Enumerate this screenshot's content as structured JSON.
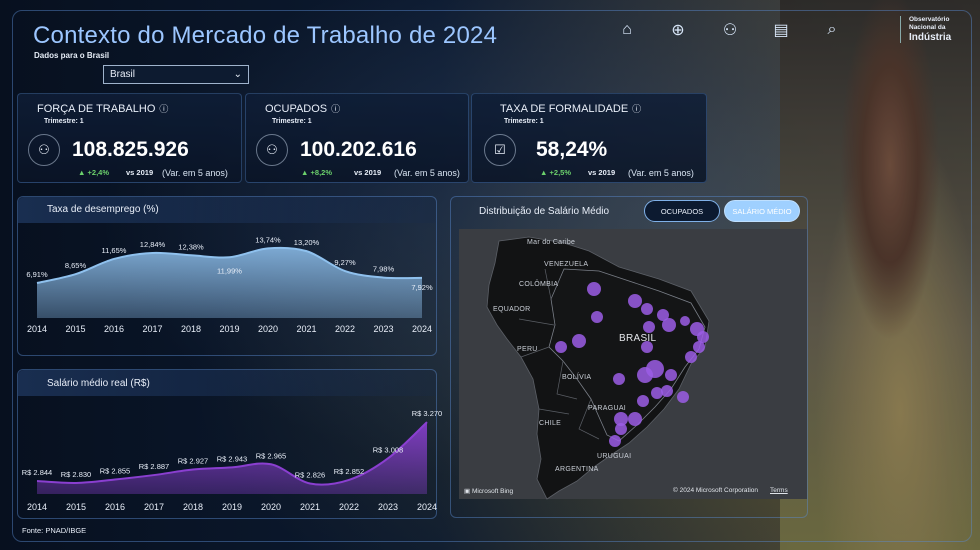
{
  "header": {
    "title": "Contexto do Mercado de Trabalho de 2024",
    "subtitle": "Dados para o Brasil",
    "select_value": "Brasil",
    "logo_lines": [
      "Observatório",
      "Nacional da",
      "Indústria"
    ]
  },
  "nav": {
    "icons": [
      "home-icon",
      "globe-icon",
      "people-icon",
      "report-icon",
      "search-icon"
    ],
    "glyphs": [
      "⌂",
      "⊕",
      "⚇",
      "▤",
      "⌕"
    ]
  },
  "kpis": [
    {
      "title": "FORÇA DE TRABALHO",
      "sub": "Trimestre: 1",
      "value": "108.825.926",
      "delta": "+2,4%",
      "vs": "vs 2019",
      "var": "(Var. em 5 anos)",
      "icon": "workforce-icon",
      "glyph": "👥"
    },
    {
      "title": "OCUPADOS",
      "sub": "Trimestre: 1",
      "value": "100.202.616",
      "delta": "+8,2%",
      "vs": "vs 2019",
      "var": "(Var. em 5 anos)",
      "icon": "employed-icon",
      "glyph": "⚇"
    },
    {
      "title": "TAXA DE FORMALIDADE",
      "sub": "Trimestre: 1",
      "value": "58,24%",
      "delta": "+2,5%",
      "vs": "vs 2019",
      "var": "(Var. em 5 anos)",
      "icon": "formality-icon",
      "glyph": "☑"
    }
  ],
  "chart_data": [
    {
      "type": "area",
      "title": "Taxa de desemprego (%)",
      "x": [
        "2014",
        "2015",
        "2016",
        "2017",
        "2018",
        "2019",
        "2020",
        "2021",
        "2022",
        "2023",
        "2024"
      ],
      "values": [
        6.91,
        8.65,
        11.65,
        12.84,
        12.38,
        11.99,
        13.74,
        13.2,
        9.27,
        7.98,
        7.92
      ],
      "labels": [
        "6,91%",
        "8,65%",
        "11,65%",
        "12,84%",
        "12,38%",
        "11,99%",
        "13,74%",
        "13,20%",
        "9,27%",
        "7,98%",
        "7,92%"
      ],
      "ylim": [
        0,
        15
      ],
      "color": "#8fc1ee"
    },
    {
      "type": "area",
      "title": "Salário médio real (R$)",
      "x": [
        "2014",
        "2015",
        "2016",
        "2017",
        "2018",
        "2019",
        "2020",
        "2021",
        "2022",
        "2023",
        "2024"
      ],
      "values": [
        2844,
        2830,
        2855,
        2887,
        2927,
        2943,
        2965,
        2826,
        2852,
        3008,
        3270
      ],
      "labels": [
        "R$ 2.844",
        "R$ 2.830",
        "R$ 2.855",
        "R$ 2.887",
        "R$ 2.927",
        "R$ 2.943",
        "R$ 2.965",
        "R$ 2.826",
        "R$ 2.852",
        "R$ 3.008",
        "R$ 3.270"
      ],
      "ylim": [
        2750,
        3300
      ],
      "color": "#8a3fd0"
    }
  ],
  "map": {
    "title": "Distribuição de Salário Médio",
    "toggle_ocupados": "OCUPADOS",
    "toggle_salario": "SALÁRIO MÉDIO",
    "labels": [
      "Mar do Caribe",
      "VENEZUELA",
      "COLÔMBIA",
      "EQUADOR",
      "PERU",
      "BRASIL",
      "BOLÍVIA",
      "PARAGUAI",
      "CHILE",
      "URUGUAI",
      "ARGENTINA"
    ],
    "bing": "Microsoft Bing",
    "copyright": "© 2024 Microsoft Corporation",
    "terms": "Terms",
    "bubble_color": "#9b5de5"
  },
  "footer": {
    "source": "Fonte: PNAD/IBGE"
  }
}
